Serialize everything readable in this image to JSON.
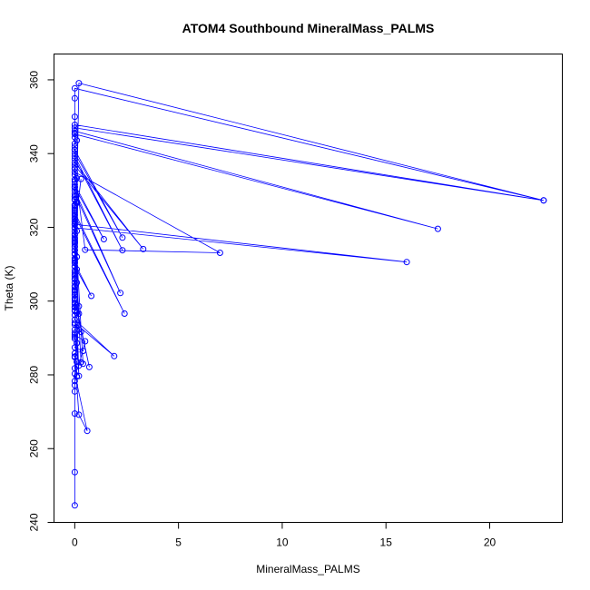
{
  "chart_data": {
    "type": "line",
    "title": "ATOM4 Southbound MineralMass_PALMS",
    "xlabel": "MineralMass_PALMS",
    "ylabel": "Theta (K)",
    "xlim": [
      -1,
      23.5
    ],
    "ylim": [
      240,
      367
    ],
    "xticks": [
      0,
      5,
      10,
      15,
      20
    ],
    "yticks": [
      240,
      260,
      280,
      300,
      320,
      340,
      360
    ],
    "grid": false,
    "colors": {
      "series": "#0000ff",
      "axis": "#000000"
    },
    "series": [
      {
        "x": [
          0.0,
          0.0,
          0.0,
          0.0,
          0.0,
          0.0,
          0.0,
          0.2,
          0.6,
          0.0,
          0.0,
          0.1,
          0.0,
          0.0,
          0.4,
          0.0,
          0.1,
          0.0,
          0.0,
          0.2,
          0.5,
          0.0,
          0.0,
          0.1,
          0.0,
          0.0,
          0.3,
          0.0,
          1.9,
          0.0,
          0.1,
          0.2,
          0.0,
          0.0,
          0.0,
          0.0,
          0.7,
          0.0,
          0.0,
          0.0,
          0.0,
          0.0,
          0.1,
          0.0,
          0.2,
          0.0,
          0.0,
          0.1,
          0.0,
          0.8,
          0.0,
          0.0,
          0.1,
          0.0,
          0.0,
          0.0,
          0.2,
          0.0,
          0.0,
          0.3,
          0.0,
          0.0,
          0.1,
          0.0,
          0.0,
          0.0,
          0.4,
          0.0,
          0.0,
          2.4,
          0.0,
          0.0,
          0.2,
          0.0,
          0.1,
          0.0,
          0.0,
          0.0,
          2.2,
          0.0,
          0.0,
          1.4,
          0.0,
          0.0,
          0.1,
          0.0,
          0.0,
          7.0,
          0.5,
          0.0,
          0.0,
          3.3,
          0.0,
          0.0,
          2.3,
          0.0,
          0.0,
          2.3,
          0.0,
          0.0,
          0.0,
          0.1,
          0.0,
          0.0,
          17.5,
          0.0,
          0.0,
          22.6,
          0.0,
          0.0,
          0.0,
          0.0,
          0.1,
          0.0,
          0.0,
          0.0,
          0.0,
          0.0,
          0.0,
          0.0,
          16.0,
          0.0,
          0.3,
          0.0,
          0.0,
          0.0,
          0.0,
          0.0,
          0.0,
          0.0,
          0.0,
          0.0,
          0.0,
          0.0,
          0.0,
          0.0,
          0.0,
          0.0,
          0.0,
          0.0,
          0.0,
          0.0,
          0.0,
          0.0,
          0.0,
          0.2,
          22.6,
          0.0,
          0.0,
          0.0,
          0.0,
          0.0,
          0.0,
          0.0,
          0.0,
          0.0,
          0.0,
          0.0,
          0.0
        ],
        "y": [
          244.6,
          253.6,
          275.5,
          277.2,
          278.3,
          269.5,
          285.0,
          269.2,
          264.8,
          280.3,
          281.8,
          283.5,
          284.8,
          285.8,
          286.5,
          287.4,
          288.6,
          289.8,
          290.3,
          282.5,
          289.1,
          290.8,
          291.4,
          279.6,
          292.3,
          293.6,
          291.6,
          294.1,
          285.1,
          295.0,
          296.8,
          279.7,
          297.5,
          298.3,
          299.2,
          300.1,
          282.1,
          300.8,
          301.6,
          302.4,
          303.2,
          304.1,
          305.0,
          305.9,
          298.6,
          306.8,
          307.7,
          308.6,
          309.4,
          301.4,
          310.3,
          311.2,
          312.0,
          312.9,
          313.8,
          314.7,
          296.6,
          315.5,
          316.4,
          283.4,
          317.2,
          318.1,
          319.0,
          319.8,
          320.7,
          321.5,
          283.0,
          322.3,
          323.2,
          296.6,
          324.0,
          324.9,
          292.3,
          325.8,
          326.6,
          327.4,
          328.3,
          329.1,
          302.2,
          330.0,
          330.8,
          316.8,
          331.6,
          332.5,
          333.3,
          334.2,
          335.0,
          313.1,
          313.9,
          335.9,
          336.8,
          314.1,
          337.6,
          338.5,
          313.8,
          339.3,
          340.1,
          317.2,
          341.0,
          341.9,
          342.7,
          343.6,
          344.4,
          345.3,
          319.6,
          346.1,
          347.0,
          327.3,
          347.8,
          333.0,
          328.4,
          327.6,
          326.9,
          326.1,
          325.3,
          324.4,
          323.5,
          322.6,
          321.7,
          320.8,
          310.6,
          319.9,
          333.1,
          318.9,
          317.9,
          316.9,
          315.9,
          314.8,
          313.8,
          312.7,
          311.6,
          310.5,
          309.4,
          308.3,
          307.2,
          306.1,
          305.0,
          303.9,
          302.8,
          301.7,
          300.6,
          299.5,
          298.4,
          297.3,
          296.2,
          359.1,
          327.3,
          357.7,
          355.0,
          350.0,
          345.5,
          341.0,
          336.0,
          331.0,
          326.0,
          321.0,
          316.0,
          311.0,
          306.0
        ]
      }
    ]
  }
}
